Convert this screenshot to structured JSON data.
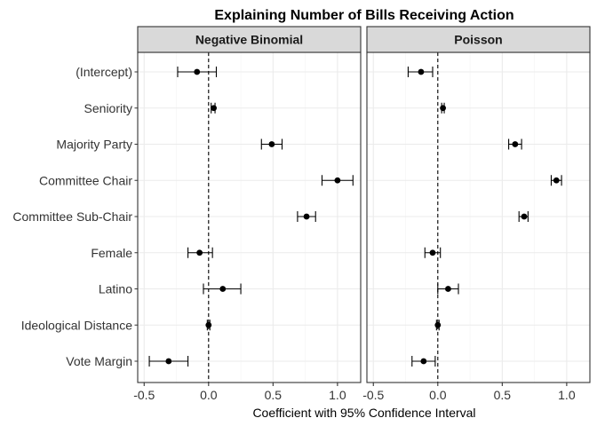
{
  "chart_data": {
    "type": "scatter",
    "subtype": "coefficient-plot",
    "title": "Explaining Number of Bills Receiving Action",
    "xlabel": "Coefficient with 95% Confidence Interval",
    "ylabel": "",
    "xlim": [
      -0.55,
      1.18
    ],
    "xticks": [
      -0.5,
      0.0,
      0.5,
      1.0
    ],
    "xtick_labels": [
      "-0.5",
      "0.0",
      "0.5",
      "1.0"
    ],
    "reference_line": {
      "x": 0,
      "style": "dashed"
    },
    "grid": true,
    "legend": "none",
    "categories": [
      "(Intercept)",
      "Seniority",
      "Majority Party",
      "Committee Chair",
      "Committee Sub-Chair",
      "Female",
      "Latino",
      "Ideological Distance",
      "Vote Margin"
    ],
    "panels": [
      {
        "name": "Negative Binomial",
        "estimates": [
          -0.09,
          0.04,
          0.49,
          1.0,
          0.76,
          -0.07,
          0.11,
          0.0,
          -0.31
        ],
        "ci_low": [
          -0.24,
          0.02,
          0.41,
          0.88,
          0.69,
          -0.16,
          -0.04,
          -0.01,
          -0.46
        ],
        "ci_high": [
          0.06,
          0.05,
          0.57,
          1.12,
          0.83,
          0.03,
          0.25,
          0.01,
          -0.16
        ]
      },
      {
        "name": "Poisson",
        "estimates": [
          -0.13,
          0.04,
          0.6,
          0.92,
          0.67,
          -0.04,
          0.08,
          0.0,
          -0.11
        ],
        "ci_low": [
          -0.23,
          0.03,
          0.55,
          0.88,
          0.63,
          -0.1,
          0.0,
          -0.01,
          -0.2
        ],
        "ci_high": [
          -0.04,
          0.05,
          0.65,
          0.96,
          0.7,
          0.02,
          0.16,
          0.01,
          -0.02
        ]
      }
    ]
  },
  "colors": {
    "panel_border": "#333333",
    "strip_fill": "#d9d9d9",
    "grid_major": "#ebebeb",
    "grid_minor": "#f5f5f5",
    "marks": "#000000"
  }
}
